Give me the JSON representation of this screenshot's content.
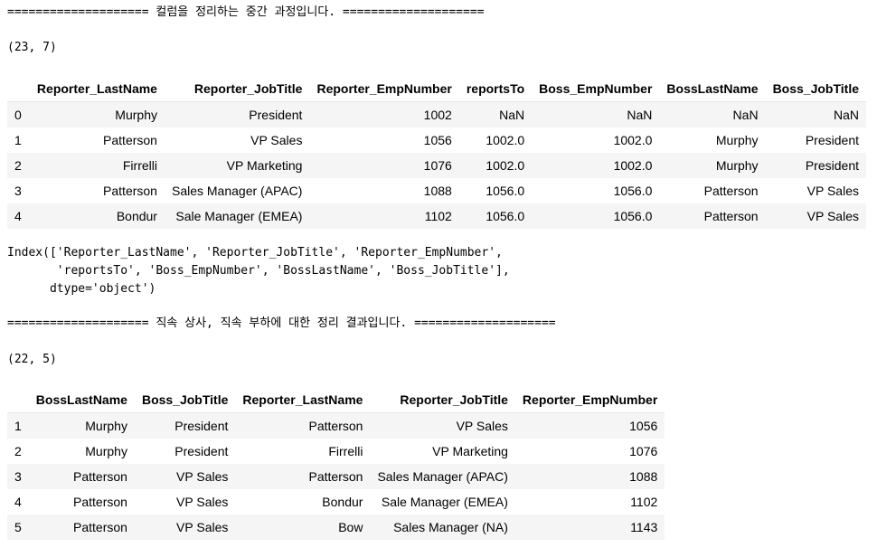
{
  "output": {
    "separator1": "==================== 컬럼을 정리하는 중간 과정입니다. ====================",
    "shape1": "(23, 7)",
    "table1": {
      "columns": [
        "",
        "Reporter_LastName",
        "Reporter_JobTitle",
        "Reporter_EmpNumber",
        "reportsTo",
        "Boss_EmpNumber",
        "BossLastName",
        "Boss_JobTitle"
      ],
      "rows": [
        [
          "0",
          "Murphy",
          "President",
          "1002",
          "NaN",
          "NaN",
          "NaN",
          "NaN"
        ],
        [
          "1",
          "Patterson",
          "VP Sales",
          "1056",
          "1002.0",
          "1002.0",
          "Murphy",
          "President"
        ],
        [
          "2",
          "Firrelli",
          "VP Marketing",
          "1076",
          "1002.0",
          "1002.0",
          "Murphy",
          "President"
        ],
        [
          "3",
          "Patterson",
          "Sales Manager (APAC)",
          "1088",
          "1056.0",
          "1056.0",
          "Patterson",
          "VP Sales"
        ],
        [
          "4",
          "Bondur",
          "Sale Manager (EMEA)",
          "1102",
          "1056.0",
          "1056.0",
          "Patterson",
          "VP Sales"
        ]
      ]
    },
    "index_repr": "Index(['Reporter_LastName', 'Reporter_JobTitle', 'Reporter_EmpNumber',\n       'reportsTo', 'Boss_EmpNumber', 'BossLastName', 'Boss_JobTitle'],\n      dtype='object')",
    "separator2": "==================== 직속 상사, 직속 부하에 대한 정리 결과입니다. ====================",
    "shape2": "(22, 5)",
    "table2": {
      "columns": [
        "",
        "BossLastName",
        "Boss_JobTitle",
        "Reporter_LastName",
        "Reporter_JobTitle",
        "Reporter_EmpNumber"
      ],
      "rows": [
        [
          "1",
          "Murphy",
          "President",
          "Patterson",
          "VP Sales",
          "1056"
        ],
        [
          "2",
          "Murphy",
          "President",
          "Firrelli",
          "VP Marketing",
          "1076"
        ],
        [
          "3",
          "Patterson",
          "VP Sales",
          "Patterson",
          "Sales Manager (APAC)",
          "1088"
        ],
        [
          "4",
          "Patterson",
          "VP Sales",
          "Bondur",
          "Sale Manager (EMEA)",
          "1102"
        ],
        [
          "5",
          "Patterson",
          "VP Sales",
          "Bow",
          "Sales Manager (NA)",
          "1143"
        ]
      ]
    }
  }
}
